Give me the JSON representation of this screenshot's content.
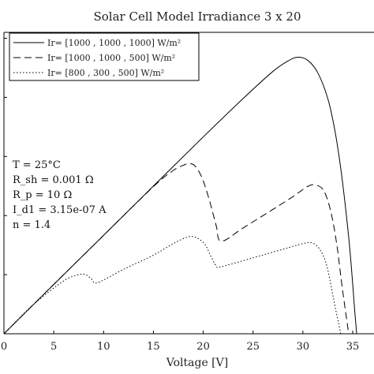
{
  "chart_data": {
    "type": "line",
    "title": "Solar Cell Model Irradiance 3 x 20",
    "xlabel": "Voltage [V]",
    "ylabel": "",
    "xlim": [
      0,
      37
    ],
    "ylim": [
      0,
      10.2
    ],
    "x_ticks": [
      "0",
      "5",
      "10",
      "15",
      "20",
      "25",
      "30",
      "35"
    ],
    "grid": false,
    "legend_position": "top-left",
    "series": [
      {
        "name": "Ir= [1000 , 1000 , 1000] W/m²",
        "style": "solid",
        "x": [
          0,
          5,
          10,
          15,
          20,
          24,
          27,
          28.5,
          29.5,
          30.5,
          31.5,
          32.5,
          33.2,
          33.8,
          34.3,
          34.7,
          35.0,
          35.2,
          35.4
        ],
        "y": [
          0,
          1.67,
          3.33,
          5.0,
          6.66,
          7.96,
          8.88,
          9.23,
          9.36,
          9.25,
          8.83,
          7.96,
          6.9,
          5.6,
          4.21,
          2.91,
          1.68,
          0.79,
          0
        ]
      },
      {
        "name": "Ir= [1000 , 1000 , 500] W/m²",
        "style": "dashed",
        "x": [
          0,
          5,
          10,
          15,
          17,
          18,
          18.6,
          19.2,
          19.9,
          20.6,
          21.3,
          21.8,
          24,
          27,
          29,
          30.5,
          31.3,
          32.1,
          32.8,
          33.4,
          33.9,
          34.3,
          34.6
        ],
        "y": [
          0,
          1.67,
          3.33,
          4.98,
          5.53,
          5.7,
          5.76,
          5.67,
          5.26,
          4.54,
          3.66,
          3.13,
          3.58,
          4.21,
          4.64,
          4.99,
          5.03,
          4.84,
          4.14,
          3.03,
          1.69,
          0.71,
          0
        ]
      },
      {
        "name": "Ir= [800 , 300 , 500] W/m²",
        "style": "dotted",
        "x": [
          0,
          3,
          6,
          7.5,
          8.2,
          8.8,
          9.4,
          12,
          15,
          17,
          18.5,
          19.4,
          20.2,
          20.7,
          21.3,
          21.8,
          25,
          28,
          30,
          31,
          31.8,
          32.4,
          32.9,
          33.3,
          33.6,
          33.8
        ],
        "y": [
          0,
          1.0,
          1.79,
          2.0,
          2.0,
          1.85,
          1.73,
          2.18,
          2.66,
          3.05,
          3.28,
          3.24,
          3.01,
          2.67,
          2.3,
          2.27,
          2.57,
          2.86,
          3.05,
          3.07,
          2.8,
          2.3,
          1.49,
          0.81,
          0.33,
          0
        ]
      }
    ],
    "annotations": {
      "temperature": "T = 25°C",
      "rsh": "R_sh = 0.001 Ω",
      "rp": "R_p = 10 Ω",
      "id1": "I_d1 = 3.15e-07 A",
      "n": "n = 1.4"
    }
  }
}
